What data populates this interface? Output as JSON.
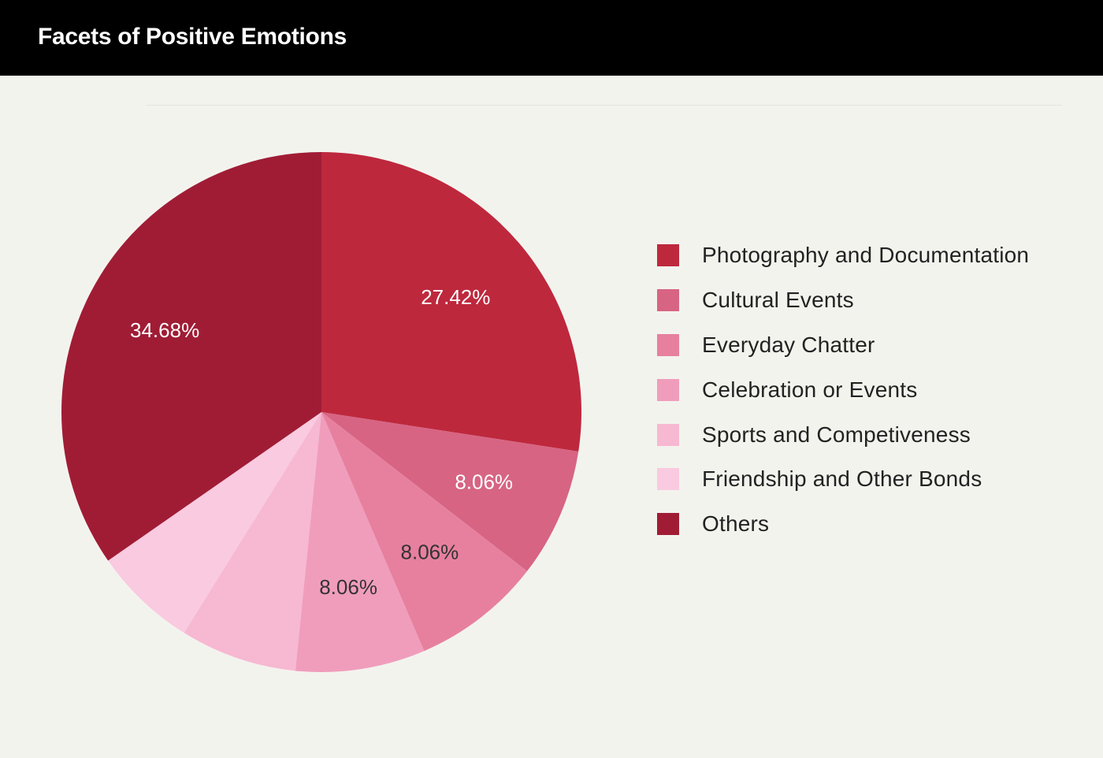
{
  "header": {
    "title": "Facets of Positive Emotions"
  },
  "chart_data": {
    "type": "pie",
    "title": "Facets of Positive Emotions",
    "legend_position": "right",
    "start_angle_deg": 0,
    "direction": "clockwise",
    "slices": [
      {
        "label": "Photography and Documentation",
        "value": 27.42,
        "display": "27.42%",
        "color": "#be283d",
        "label_color": "#ffffff"
      },
      {
        "label": "Cultural Events",
        "value": 8.06,
        "display": "8.06%",
        "color": "#d76483",
        "label_color": "#ffffff"
      },
      {
        "label": "Everyday Chatter",
        "value": 8.06,
        "display": "8.06%",
        "color": "#e7809f",
        "label_color": "#333333"
      },
      {
        "label": "Celebration or Events",
        "value": 8.06,
        "display": "8.06%",
        "color": "#f09dbc",
        "label_color": "#333333"
      },
      {
        "label": "Sports and Competiveness",
        "value": 7.26,
        "display": "",
        "color": "#f7b8d2",
        "label_color": "#333333"
      },
      {
        "label": "Friendship and Other Bonds",
        "value": 6.46,
        "display": "",
        "color": "#f9cae0",
        "label_color": "#333333"
      },
      {
        "label": "Others",
        "value": 34.68,
        "display": "34.68%",
        "color": "#a01c35",
        "label_color": "#ffffff"
      }
    ]
  }
}
